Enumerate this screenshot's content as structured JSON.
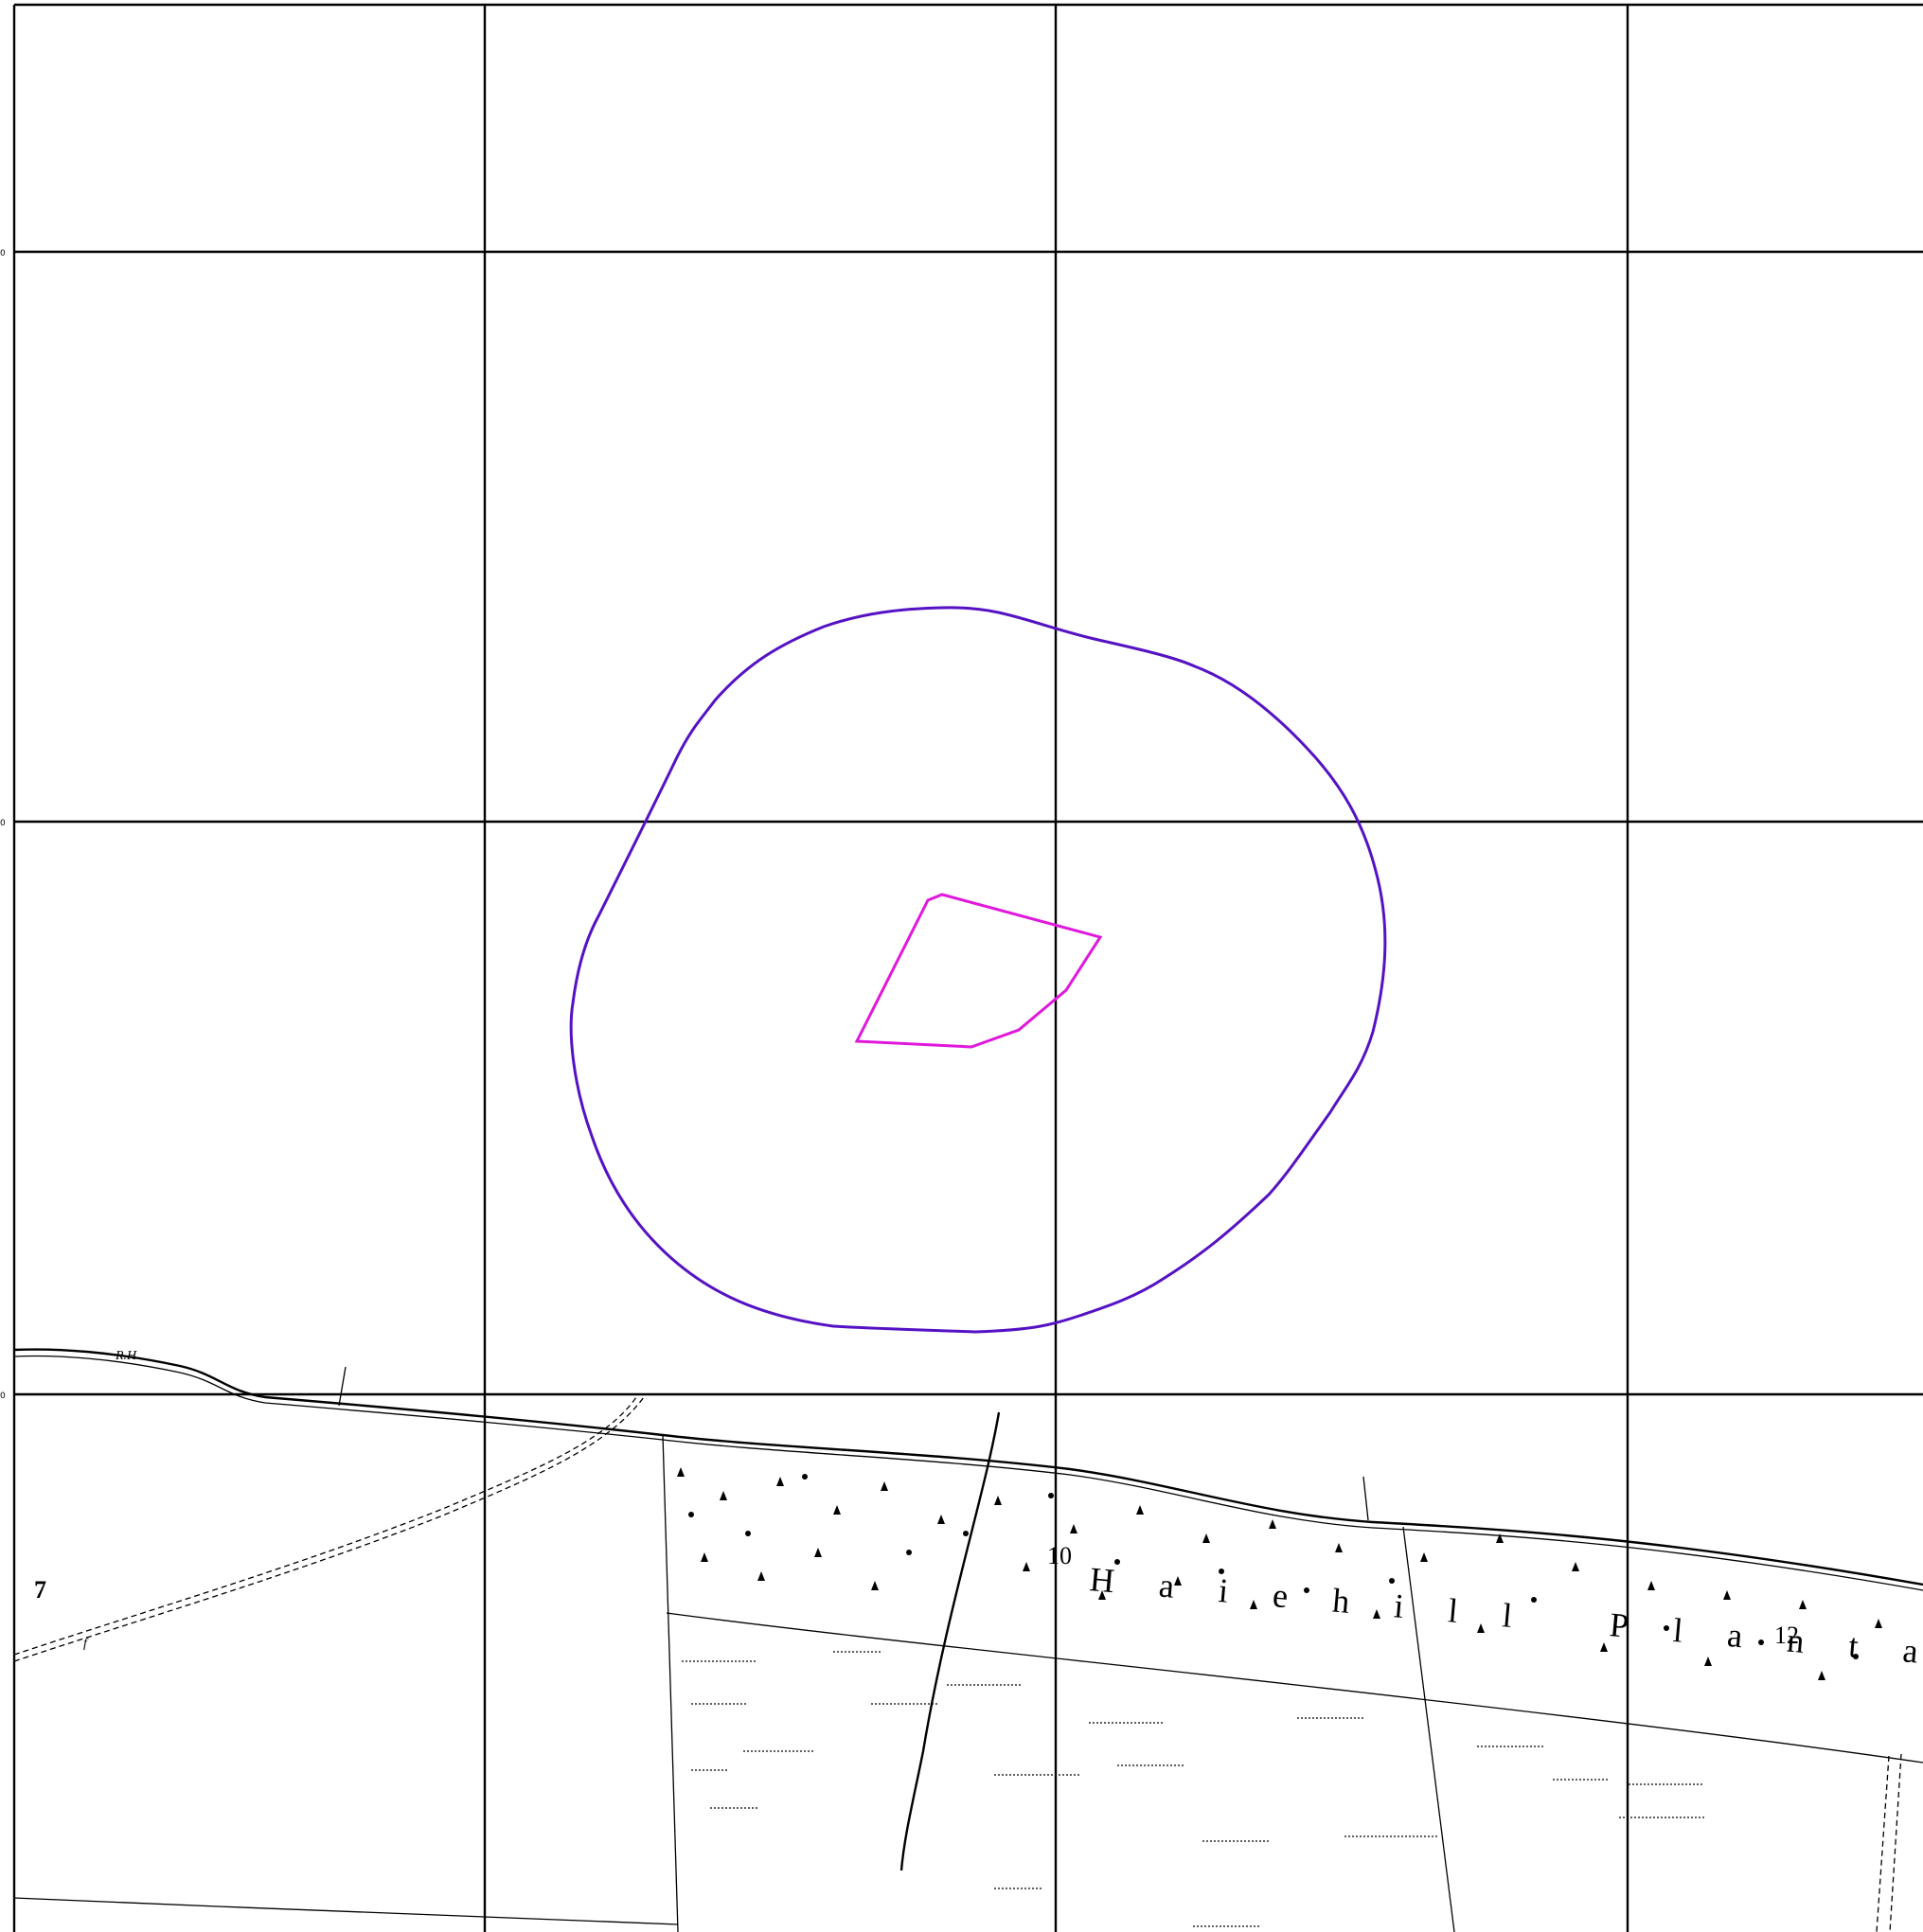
{
  "grid": {
    "tick_labels": [
      "0",
      "0",
      "0"
    ]
  },
  "map_labels": {
    "place_name": "Haiehill Planta",
    "parcel_number_left": "7",
    "parcel_number_right": "12",
    "parcel_number_mid": "10",
    "road_label": "R.H",
    "path_label": "f"
  },
  "colors": {
    "outer_boundary": "#5512c4",
    "site_outline": "#e018dc",
    "grid": "#000000",
    "background": "#ffffff"
  }
}
